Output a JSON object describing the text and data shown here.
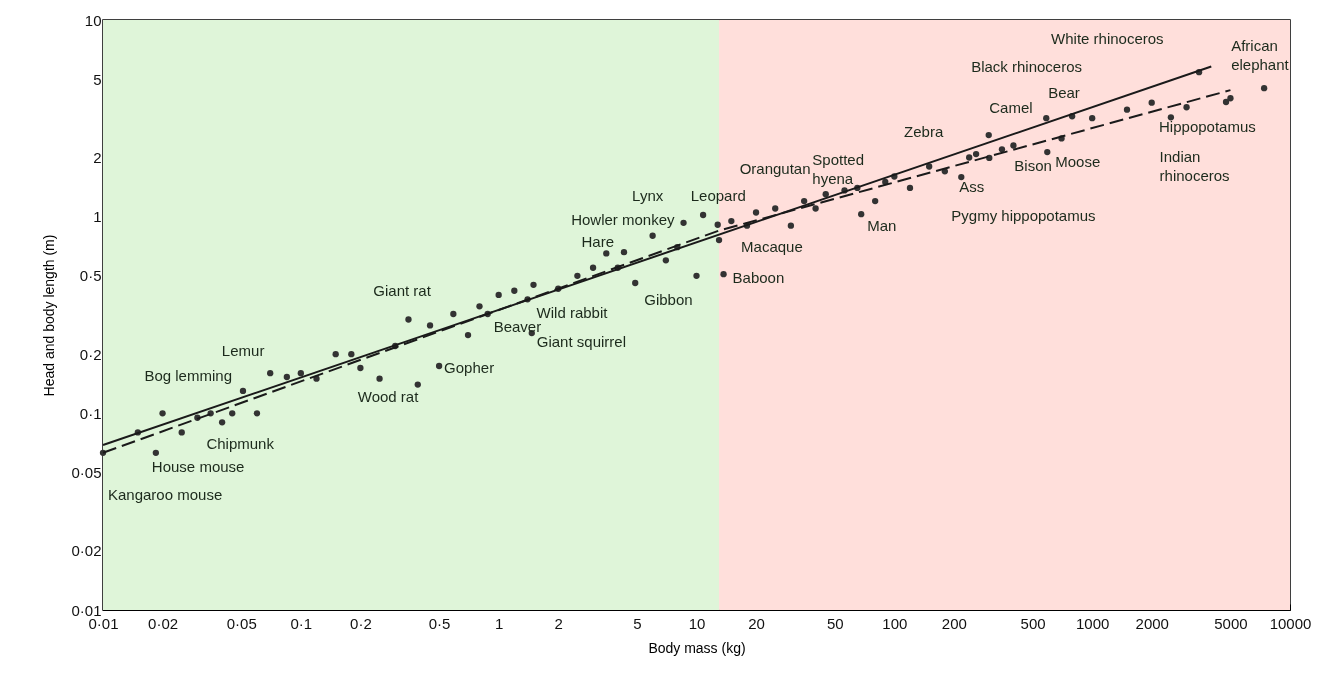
{
  "chart_data": {
    "type": "scatter",
    "xlabel": "Body mass (kg)",
    "ylabel": "Head and body length (m)",
    "log": "xy",
    "xlim": [
      0.01,
      10000
    ],
    "ylim": [
      0.01,
      10
    ],
    "xticks": [
      {
        "value": 0.01,
        "label": "0·01"
      },
      {
        "value": 0.02,
        "label": "0·02"
      },
      {
        "value": 0.05,
        "label": "0·05"
      },
      {
        "value": 0.1,
        "label": "0·1"
      },
      {
        "value": 0.2,
        "label": "0·2"
      },
      {
        "value": 0.5,
        "label": "0·5"
      },
      1,
      2,
      5,
      10,
      20,
      50,
      100,
      200,
      500,
      1000,
      2000,
      5000,
      10000
    ],
    "yticks": [
      {
        "value": 0.01,
        "label": "0·01"
      },
      {
        "value": 0.02,
        "label": "0·02"
      },
      {
        "value": 0.05,
        "label": "0·05"
      },
      {
        "value": 0.1,
        "label": "0·1"
      },
      {
        "value": 0.2,
        "label": "0·2"
      },
      {
        "value": 0.5,
        "label": "0·5"
      },
      1,
      2,
      5,
      10
    ],
    "grid": false,
    "bands": [
      {
        "axis": "x",
        "from": 0.01,
        "to": 13,
        "color": "#dff5d9"
      },
      {
        "axis": "x",
        "from": 13,
        "to": 10000,
        "color": "#ffdfdb"
      }
    ],
    "series": [
      {
        "type": "scatter",
        "marker": "circle",
        "color": "#333333",
        "x": [
          0.01,
          0.0185,
          0.03,
          0.051,
          0.085,
          0.39,
          0.5,
          0.59,
          0.88,
          1.47,
          1.4,
          4.9,
          4.3,
          8.6,
          10.8,
          12.8,
          13,
          13.7,
          56,
          65,
          68,
          259,
          239,
          218,
          302,
          586,
          792,
          593,
          1000,
          3470,
          7400,
          4750,
          3000,
          0.015,
          0.02,
          0.025,
          0.035,
          0.04,
          0.045,
          0.06,
          0.07,
          0.1,
          0.12,
          0.15,
          0.18,
          0.2,
          0.25,
          0.3,
          0.35,
          0.45,
          0.7,
          0.8,
          1,
          1.2,
          1.5,
          2,
          2.5,
          3,
          3.5,
          4,
          6,
          7,
          8,
          10,
          15,
          18,
          20,
          25,
          30,
          35,
          40,
          45,
          80,
          90,
          100,
          120,
          150,
          180,
          300,
          350,
          400,
          700,
          1500,
          2000,
          2500,
          5000
        ],
        "values": [
          0.063,
          0.063,
          0.095,
          0.13,
          0.153,
          0.14,
          0.174,
          0.32,
          0.32,
          0.256,
          0.38,
          0.46,
          0.66,
          0.93,
          1.02,
          0.91,
          0.76,
          0.51,
          1.36,
          1.4,
          1.03,
          2.08,
          2,
          1.59,
          1.99,
          3.17,
          3.24,
          2.13,
          3.17,
          5.43,
          4.5,
          3.83,
          3.6,
          0.08,
          0.1,
          0.08,
          0.1,
          0.09,
          0.1,
          0.1,
          0.16,
          0.16,
          0.15,
          0.2,
          0.2,
          0.17,
          0.15,
          0.22,
          0.3,
          0.28,
          0.25,
          0.35,
          0.4,
          0.42,
          0.45,
          0.43,
          0.5,
          0.55,
          0.65,
          0.55,
          0.8,
          0.6,
          0.7,
          0.5,
          0.95,
          0.9,
          1.05,
          1.1,
          0.9,
          1.2,
          1.1,
          1.3,
          1.2,
          1.5,
          1.6,
          1.4,
          1.8,
          1.7,
          2.6,
          2.2,
          2.3,
          2.5,
          3.5,
          3.8,
          3.2,
          4
        ]
      },
      {
        "type": "line",
        "line_style": "solid",
        "color": "#1a1a1a",
        "x": [
          0.01,
          4000
        ],
        "values": [
          0.069,
          5.8
        ]
      },
      {
        "type": "line",
        "line_style": "dashed",
        "color": "#1a1a1a",
        "x": [
          0.01,
          13,
          5000
        ],
        "values": [
          0.063,
          0.85,
          4.4
        ]
      }
    ],
    "annotations": [
      {
        "text": "Kangaroo mouse",
        "x": 0.01,
        "y": 0.063
      },
      {
        "text": "House mouse",
        "x": 0.0185,
        "y": 0.063
      },
      {
        "text": "Chipmunk",
        "x": 0.03,
        "y": 0.095
      },
      {
        "text": "Bog lemming",
        "x": 0.051,
        "y": 0.13
      },
      {
        "text": "Lemur",
        "x": 0.085,
        "y": 0.153
      },
      {
        "text": "Wood rat",
        "x": 0.39,
        "y": 0.14
      },
      {
        "text": "Gopher",
        "x": 0.5,
        "y": 0.174
      },
      {
        "text": "Giant rat",
        "x": 0.59,
        "y": 0.32
      },
      {
        "text": "Beaver",
        "x": 0.88,
        "y": 0.32
      },
      {
        "text": "Giant squirrel",
        "x": 1.47,
        "y": 0.256
      },
      {
        "text": "Wild rabbit",
        "x": 1.4,
        "y": 0.38
      },
      {
        "text": "Gibbon",
        "x": 4.9,
        "y": 0.46
      },
      {
        "text": "Hare",
        "x": 4.3,
        "y": 0.66
      },
      {
        "text": "Howler monkey",
        "x": 8.6,
        "y": 0.93
      },
      {
        "text": "Lynx",
        "x": 10.8,
        "y": 1.02
      },
      {
        "text": "Leopard",
        "x": 12.8,
        "y": 0.91
      },
      {
        "text": "Macaque",
        "x": 13,
        "y": 0.76
      },
      {
        "text": "Baboon",
        "x": 13.7,
        "y": 0.51
      },
      {
        "text": "Orangutan",
        "x": 56,
        "y": 1.36
      },
      {
        "text": "Spotted hyena",
        "x": 65,
        "y": 1.4
      },
      {
        "text": "Man",
        "x": 68,
        "y": 1.03
      },
      {
        "text": "Zebra",
        "x": 259,
        "y": 2.08
      },
      {
        "text": "Ass",
        "x": 239,
        "y": 2
      },
      {
        "text": "Pygmy hippopotamus",
        "x": 218,
        "y": 1.59
      },
      {
        "text": "Bison",
        "x": 302,
        "y": 1.99
      },
      {
        "text": "Camel",
        "x": 586,
        "y": 3.17
      },
      {
        "text": "Bear",
        "x": 792,
        "y": 3.24
      },
      {
        "text": "Moose",
        "x": 593,
        "y": 2.13
      },
      {
        "text": "Black rhinoceros",
        "x": 1000,
        "y": 3.17
      },
      {
        "text": "White rhinoceros",
        "x": 3470,
        "y": 5.43
      },
      {
        "text": "African elephant",
        "x": 7400,
        "y": 4.5
      },
      {
        "text": "Hippopotamus",
        "x": 4750,
        "y": 3.83
      },
      {
        "text": "Indian rhinoceros",
        "x": 3000,
        "y": 3.6
      }
    ]
  }
}
